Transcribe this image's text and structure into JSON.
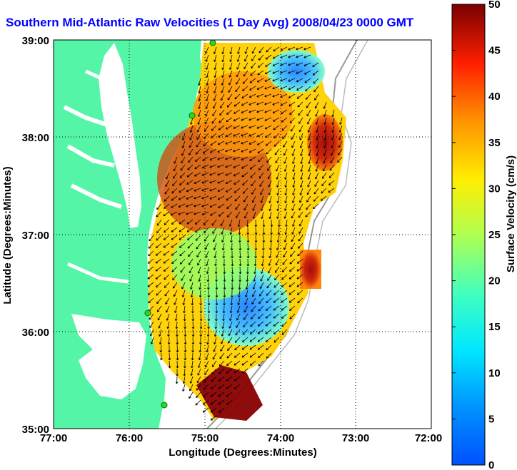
{
  "title": "Southern Mid-Atlantic Raw Velocities (1 Day Avg) 2008/04/23 0000 GMT",
  "x_axis": {
    "label": "Longitude (Degrees:Minutes)",
    "ticks": [
      "77:00",
      "76:00",
      "75:00",
      "74:00",
      "73:00",
      "72:00"
    ]
  },
  "y_axis": {
    "label": "Latitude (Degrees:Minutes)",
    "ticks": [
      "39:00",
      "38:00",
      "37:00",
      "36:00",
      "35:00"
    ]
  },
  "colorbar": {
    "label": "Surface Velocity (cm/s)",
    "ticks": [
      "50",
      "45",
      "40",
      "35",
      "30",
      "25",
      "20",
      "15",
      "10",
      "5",
      "0"
    ],
    "min": 0,
    "max": 50
  },
  "colors": {
    "land": "#55f5a8",
    "ocean": "#ffffff",
    "title": "#0000ff",
    "station": "#22dd22"
  }
}
